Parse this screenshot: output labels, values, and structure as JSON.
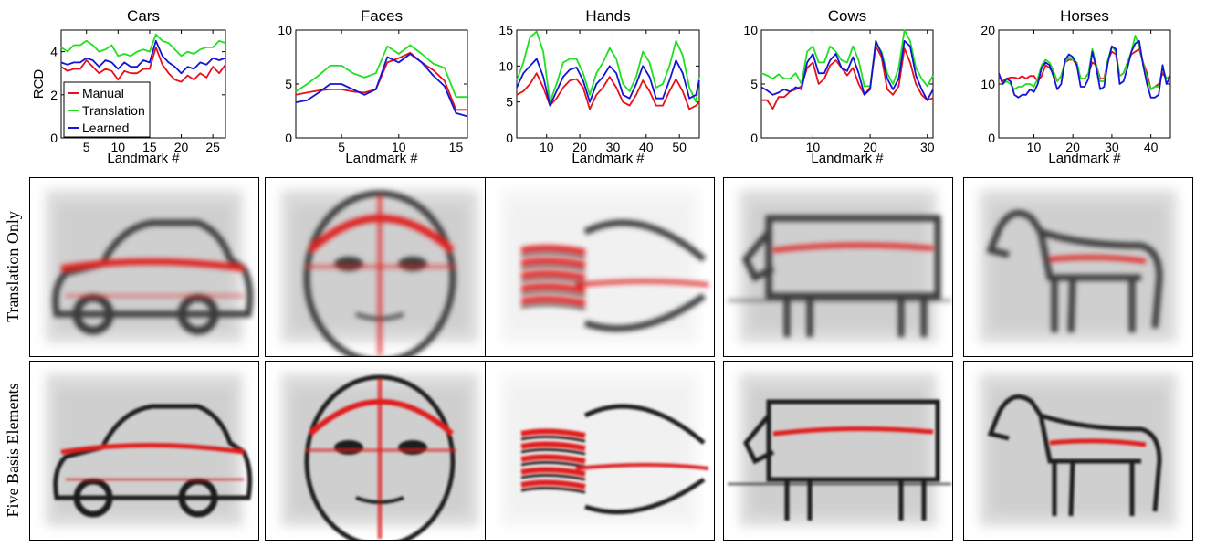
{
  "row_labels": [
    "Translation Only",
    "Five Basis Elements"
  ],
  "legend_items": [
    {
      "name": "Manual",
      "color": "#e8101a"
    },
    {
      "name": "Translation",
      "color": "#1fe01f"
    },
    {
      "name": "Learned",
      "color": "#1414d8"
    }
  ],
  "panels": [
    {
      "title": "Cars",
      "image_subject": "car",
      "image_subject_icon": "car-icon"
    },
    {
      "title": "Faces",
      "image_subject": "face",
      "image_subject_icon": "face-icon"
    },
    {
      "title": "Hands",
      "image_subject": "hand",
      "image_subject_icon": "hand-icon"
    },
    {
      "title": "Cows",
      "image_subject": "cow",
      "image_subject_icon": "cow-icon"
    },
    {
      "title": "Horses",
      "image_subject": "horse",
      "image_subject_icon": "horse-icon"
    }
  ],
  "chart_data": [
    {
      "type": "line",
      "title": "Cars",
      "xlabel": "Landmark #",
      "ylabel": "RCD",
      "xlim": [
        1,
        27
      ],
      "ylim": [
        0,
        5
      ],
      "xticks": [
        5,
        10,
        15,
        20,
        25
      ],
      "yticks": [
        0,
        2,
        4
      ],
      "legend": "bottom-left",
      "x": [
        1,
        2,
        3,
        4,
        5,
        6,
        7,
        8,
        9,
        10,
        11,
        12,
        13,
        14,
        15,
        16,
        17,
        18,
        19,
        20,
        21,
        22,
        23,
        24,
        25,
        26,
        27
      ],
      "series": [
        {
          "name": "Manual",
          "color": "#e8101a",
          "values": [
            3.3,
            3.1,
            3.2,
            3.2,
            3.6,
            3.3,
            3.0,
            3.2,
            3.1,
            2.7,
            3.1,
            3.0,
            3.0,
            3.2,
            3.2,
            4.2,
            3.4,
            3.0,
            2.7,
            2.6,
            2.9,
            2.7,
            3.0,
            2.8,
            3.3,
            3.0,
            3.4
          ]
        },
        {
          "name": "Translation",
          "color": "#1fe01f",
          "values": [
            4.2,
            4.0,
            4.3,
            4.3,
            4.5,
            4.3,
            4.0,
            4.1,
            4.3,
            3.8,
            3.9,
            3.8,
            4.0,
            4.1,
            4.0,
            4.8,
            4.5,
            4.4,
            4.1,
            3.8,
            4.0,
            3.9,
            4.1,
            4.2,
            4.2,
            4.5,
            4.4
          ]
        },
        {
          "name": "Learned",
          "color": "#1414d8",
          "values": [
            3.5,
            3.4,
            3.5,
            3.5,
            3.7,
            3.6,
            3.3,
            3.6,
            3.5,
            3.2,
            3.5,
            3.3,
            3.3,
            3.6,
            3.5,
            4.5,
            3.8,
            3.5,
            3.3,
            3.0,
            3.3,
            3.2,
            3.5,
            3.4,
            3.7,
            3.6,
            3.7
          ]
        }
      ]
    },
    {
      "type": "line",
      "title": "Faces",
      "xlabel": "Landmark #",
      "ylabel": "",
      "xlim": [
        1,
        16
      ],
      "ylim": [
        0,
        10
      ],
      "xticks": [
        5,
        10,
        15
      ],
      "yticks": [
        0,
        5,
        10
      ],
      "x": [
        1,
        2,
        3,
        4,
        5,
        6,
        7,
        8,
        9,
        10,
        11,
        12,
        13,
        14,
        15,
        16
      ],
      "series": [
        {
          "name": "Manual",
          "color": "#e8101a",
          "values": [
            4.0,
            4.2,
            4.4,
            4.5,
            4.5,
            4.3,
            4.2,
            4.5,
            7.0,
            7.4,
            7.9,
            7.0,
            6.3,
            5.3,
            2.6,
            2.6
          ]
        },
        {
          "name": "Translation",
          "color": "#1fe01f",
          "values": [
            4.3,
            5.0,
            5.8,
            6.7,
            6.7,
            6.0,
            5.6,
            6.0,
            8.5,
            7.8,
            8.6,
            7.8,
            6.9,
            6.5,
            3.8,
            3.8
          ]
        },
        {
          "name": "Learned",
          "color": "#1414d8",
          "values": [
            3.3,
            3.5,
            4.2,
            5.0,
            5.0,
            4.5,
            4.0,
            4.5,
            7.5,
            7.0,
            7.8,
            7.0,
            5.8,
            4.8,
            2.3,
            2.0
          ]
        }
      ]
    },
    {
      "type": "line",
      "title": "Hands",
      "xlabel": "Landmark #",
      "ylabel": "",
      "xlim": [
        1,
        56
      ],
      "ylim": [
        0,
        15
      ],
      "xticks": [
        10,
        20,
        30,
        40,
        50
      ],
      "yticks": [
        0,
        5,
        10,
        15
      ],
      "x": [
        1,
        3,
        5,
        7,
        9,
        11,
        13,
        15,
        17,
        19,
        21,
        23,
        25,
        27,
        29,
        31,
        33,
        35,
        37,
        39,
        41,
        43,
        45,
        47,
        49,
        51,
        53,
        55,
        56
      ],
      "series": [
        {
          "name": "Manual",
          "color": "#e8101a",
          "values": [
            6.0,
            6.5,
            7.5,
            9.0,
            7.0,
            4.5,
            5.5,
            7.0,
            8.0,
            8.2,
            7.0,
            4.0,
            6.0,
            7.0,
            8.5,
            7.0,
            5.0,
            4.5,
            6.0,
            8.0,
            6.5,
            4.5,
            4.5,
            6.5,
            8.2,
            6.5,
            4.0,
            4.5,
            5.0
          ]
        },
        {
          "name": "Translation",
          "color": "#1fe01f",
          "values": [
            8.0,
            10.5,
            14.0,
            14.8,
            12.0,
            5.0,
            7.5,
            10.5,
            11.0,
            11.0,
            9.0,
            6.0,
            9.0,
            10.5,
            12.5,
            11.0,
            7.5,
            6.5,
            8.5,
            12.0,
            10.5,
            7.0,
            7.5,
            10.0,
            13.5,
            11.5,
            7.0,
            5.0,
            8.5
          ]
        },
        {
          "name": "Learned",
          "color": "#1414d8",
          "values": [
            7.0,
            9.0,
            10.0,
            11.0,
            8.5,
            4.5,
            6.5,
            8.5,
            9.5,
            9.8,
            8.0,
            5.0,
            7.5,
            8.5,
            10.0,
            9.0,
            6.0,
            5.5,
            7.5,
            10.0,
            8.5,
            5.5,
            5.5,
            8.0,
            10.8,
            9.0,
            5.5,
            6.0,
            8.0
          ]
        }
      ]
    },
    {
      "type": "line",
      "title": "Cows",
      "xlabel": "Landmark #",
      "ylabel": "",
      "xlim": [
        1,
        31
      ],
      "ylim": [
        0,
        10
      ],
      "xticks": [
        10,
        20,
        30
      ],
      "yticks": [
        0,
        5,
        10
      ],
      "x": [
        1,
        2,
        3,
        4,
        5,
        6,
        7,
        8,
        9,
        10,
        11,
        12,
        13,
        14,
        15,
        16,
        17,
        18,
        19,
        20,
        21,
        22,
        23,
        24,
        25,
        26,
        27,
        28,
        29,
        30,
        31
      ],
      "series": [
        {
          "name": "Manual",
          "color": "#e8101a",
          "values": [
            3.5,
            3.5,
            2.7,
            3.8,
            3.8,
            4.3,
            4.5,
            4.8,
            6.5,
            7.0,
            5.0,
            5.5,
            6.7,
            7.2,
            6.5,
            5.8,
            6.5,
            5.0,
            4.0,
            4.7,
            8.5,
            7.5,
            4.5,
            4.0,
            4.8,
            8.3,
            7.0,
            5.0,
            4.0,
            3.5,
            3.7
          ]
        },
        {
          "name": "Translation",
          "color": "#1fe01f",
          "values": [
            6.0,
            5.8,
            5.5,
            5.9,
            5.5,
            5.5,
            6.0,
            5.0,
            8.0,
            8.5,
            7.0,
            7.0,
            8.5,
            8.0,
            7.2,
            7.0,
            8.5,
            7.2,
            4.8,
            4.8,
            8.8,
            8.0,
            6.0,
            5.0,
            6.5,
            10.0,
            9.0,
            6.5,
            5.5,
            4.8,
            5.8
          ]
        },
        {
          "name": "Learned",
          "color": "#1414d8",
          "values": [
            4.7,
            4.4,
            4.0,
            4.2,
            4.5,
            4.3,
            4.7,
            4.5,
            7.0,
            7.8,
            6.0,
            6.0,
            7.2,
            7.8,
            6.5,
            6.2,
            7.5,
            6.0,
            4.0,
            4.5,
            9.0,
            7.8,
            5.5,
            4.5,
            5.5,
            9.0,
            8.5,
            5.8,
            4.5,
            3.5,
            4.5
          ]
        }
      ]
    },
    {
      "type": "line",
      "title": "Horses",
      "xlabel": "Landmark #",
      "ylabel": "",
      "xlim": [
        1,
        45
      ],
      "ylim": [
        0,
        20
      ],
      "xticks": [
        10,
        20,
        30,
        40
      ],
      "yticks": [
        0,
        10,
        20
      ],
      "x": [
        1,
        2,
        3,
        4,
        5,
        6,
        7,
        8,
        9,
        10,
        11,
        12,
        13,
        14,
        15,
        16,
        17,
        18,
        19,
        20,
        21,
        22,
        23,
        24,
        25,
        26,
        27,
        28,
        29,
        30,
        31,
        32,
        33,
        34,
        35,
        36,
        37,
        38,
        39,
        40,
        41,
        42,
        43,
        44,
        45
      ],
      "series": [
        {
          "name": "Manual",
          "color": "#e8101a",
          "values": [
            11.5,
            10.5,
            11.0,
            11.2,
            11.2,
            11.0,
            11.5,
            11.0,
            11.5,
            11.5,
            10.5,
            11.5,
            13.5,
            13.0,
            12.0,
            10.5,
            11.5,
            14.0,
            14.5,
            14.5,
            13.5,
            11.0,
            11.0,
            12.0,
            14.0,
            13.5,
            11.0,
            11.0,
            14.5,
            16.0,
            15.5,
            11.5,
            12.0,
            14.0,
            15.5,
            16.0,
            16.5,
            14.0,
            12.0,
            9.0,
            9.5,
            10.0,
            12.0,
            11.0,
            11.5
          ]
        },
        {
          "name": "Translation",
          "color": "#1fe01f",
          "values": [
            12.0,
            10.0,
            10.5,
            10.0,
            9.0,
            9.5,
            9.5,
            10.0,
            10.0,
            9.5,
            11.0,
            13.5,
            14.5,
            14.0,
            12.5,
            10.5,
            11.5,
            14.0,
            15.0,
            14.5,
            14.0,
            11.0,
            11.0,
            12.0,
            16.5,
            13.5,
            10.5,
            10.5,
            14.5,
            17.0,
            16.0,
            11.5,
            12.0,
            14.0,
            16.0,
            19.0,
            17.0,
            14.0,
            11.0,
            9.0,
            9.5,
            9.5,
            13.0,
            11.0,
            11.0
          ]
        },
        {
          "name": "Learned",
          "color": "#1414d8",
          "values": [
            12.0,
            10.0,
            11.0,
            10.5,
            8.0,
            7.5,
            8.0,
            8.0,
            9.0,
            8.5,
            10.0,
            13.0,
            14.0,
            13.5,
            11.5,
            9.0,
            10.0,
            14.5,
            15.5,
            15.0,
            13.5,
            9.5,
            9.5,
            11.0,
            16.0,
            13.0,
            9.0,
            9.5,
            14.0,
            17.0,
            16.5,
            10.0,
            10.5,
            13.0,
            16.0,
            17.5,
            18.0,
            13.5,
            10.0,
            7.5,
            7.5,
            8.0,
            13.5,
            10.0,
            11.5
          ]
        }
      ]
    }
  ]
}
